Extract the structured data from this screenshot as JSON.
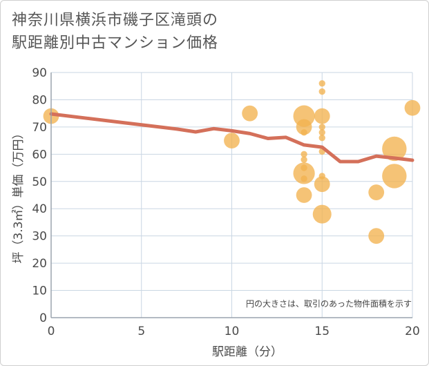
{
  "title": {
    "line1": "神奈川県横浜市磯子区滝頭の",
    "line2": "駅距離別中古マンション価格"
  },
  "chart_data": {
    "type": "scatter",
    "xlabel": "駅距離（分）",
    "ylabel": "坪（3.3㎡）単価（万円）",
    "xlim": [
      0,
      20
    ],
    "ylim": [
      0,
      90
    ],
    "x_ticks": [
      0,
      5,
      10,
      15,
      20
    ],
    "y_ticks": [
      0,
      10,
      20,
      30,
      40,
      50,
      60,
      70,
      80,
      90
    ],
    "grid": true,
    "note": "円の大きさは、取引のあった物件面積を示す",
    "colors": {
      "bubble": "#f2b24f",
      "line": "#d4705a",
      "grid": "#c9d6e3",
      "axis": "#9aa4ad"
    },
    "bubbles": [
      {
        "x": 0,
        "y": 74,
        "size": 2
      },
      {
        "x": 10,
        "y": 65,
        "size": 2
      },
      {
        "x": 11,
        "y": 75,
        "size": 2
      },
      {
        "x": 14,
        "y": 74,
        "size": 3
      },
      {
        "x": 14,
        "y": 70,
        "size": 2
      },
      {
        "x": 14,
        "y": 68,
        "size": 0.4
      },
      {
        "x": 14,
        "y": 60,
        "size": 0.4
      },
      {
        "x": 14,
        "y": 58,
        "size": 0.4
      },
      {
        "x": 14,
        "y": 55,
        "size": 0.4
      },
      {
        "x": 14,
        "y": 53,
        "size": 3
      },
      {
        "x": 14,
        "y": 51,
        "size": 0.4
      },
      {
        "x": 14,
        "y": 45,
        "size": 2
      },
      {
        "x": 15,
        "y": 86,
        "size": 0.4
      },
      {
        "x": 15,
        "y": 83,
        "size": 0.4
      },
      {
        "x": 15,
        "y": 74,
        "size": 2
      },
      {
        "x": 15,
        "y": 70,
        "size": 0.4
      },
      {
        "x": 15,
        "y": 68,
        "size": 0.4
      },
      {
        "x": 15,
        "y": 66,
        "size": 0.4
      },
      {
        "x": 15,
        "y": 61,
        "size": 0.4
      },
      {
        "x": 15,
        "y": 52,
        "size": 0.4
      },
      {
        "x": 15,
        "y": 49,
        "size": 2
      },
      {
        "x": 15,
        "y": 38,
        "size": 2.5
      },
      {
        "x": 18,
        "y": 46,
        "size": 2
      },
      {
        "x": 18,
        "y": 30,
        "size": 2
      },
      {
        "x": 19,
        "y": 62,
        "size": 3.5
      },
      {
        "x": 19,
        "y": 52,
        "size": 3.5
      },
      {
        "x": 20,
        "y": 77,
        "size": 2
      }
    ],
    "trend_line": {
      "x": [
        0,
        2,
        4,
        6,
        7,
        8,
        9,
        10,
        11,
        12,
        13,
        14,
        15,
        16,
        17,
        18,
        19,
        20
      ],
      "y": [
        74.8,
        73.2,
        71.6,
        70,
        69.2,
        68.2,
        69.4,
        68.6,
        67.6,
        65.8,
        66.2,
        63.4,
        62.6,
        57.3,
        57.3,
        59.3,
        58.6,
        57.8
      ]
    }
  }
}
